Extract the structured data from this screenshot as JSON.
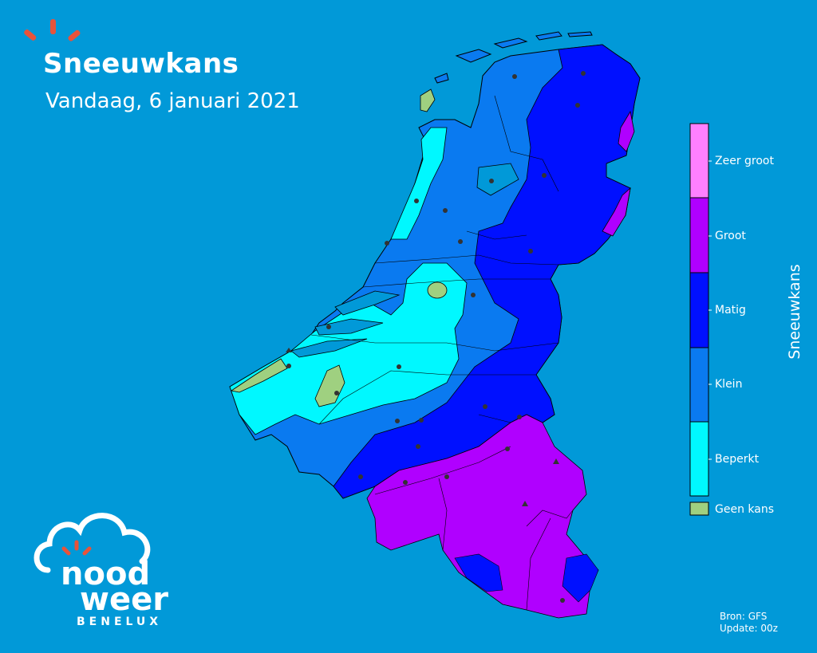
{
  "header": {
    "title": "Sneeuwkans",
    "subtitle": "Vandaag, 6 januari 2021"
  },
  "legend": {
    "title": "Sneeuwkans",
    "classes": [
      {
        "label": "Zeer groot",
        "color": "#ff80ff"
      },
      {
        "label": "Groot",
        "color": "#b000ff"
      },
      {
        "label": "Matig",
        "color": "#0010ff"
      },
      {
        "label": "Klein",
        "color": "#0a7af0"
      },
      {
        "label": "Beperkt",
        "color": "#00f8ff"
      }
    ],
    "no_chance": {
      "label": "Geen kans",
      "color": "#9fd080"
    }
  },
  "source": {
    "line1": "Bron: GFS",
    "line2": "Update: 00z"
  },
  "brand": {
    "line1": "nood",
    "line2": "weer",
    "line3": "BENELUX",
    "accent": "#e8533a"
  },
  "colors": {
    "background": "#0199d8"
  }
}
